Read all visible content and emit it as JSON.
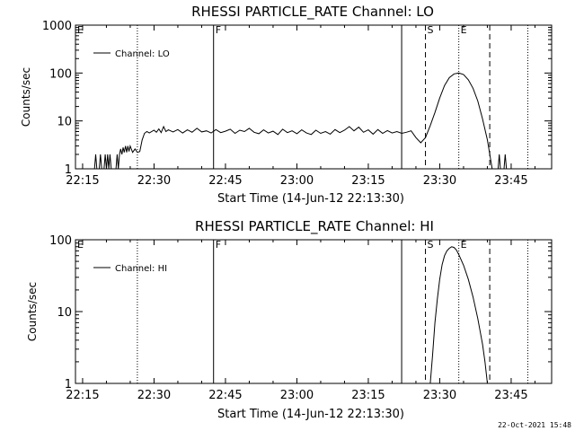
{
  "footer": {
    "timestamp": "22-Oct-2021 15:48"
  },
  "chart_data": [
    {
      "type": "line",
      "title": "RHESSI PARTICLE_RATE Channel: LO",
      "xlabel": "Start Time (14-Jun-12 22:13:30)",
      "ylabel": "Counts/sec",
      "yscale": "log",
      "ylim": [
        1,
        1000
      ],
      "ytick_values": [
        1,
        10,
        100,
        1000
      ],
      "yticks": [
        "1",
        "10",
        "100",
        "1000"
      ],
      "xlim": [
        "22:13:30",
        "23:53:30"
      ],
      "xtick_values": [
        "22:15",
        "22:30",
        "22:45",
        "23:00",
        "23:15",
        "23:30",
        "23:45"
      ],
      "xticks": [
        "22:15",
        "22:30",
        "22:45",
        "23:00",
        "23:15",
        "23:30",
        "23:45"
      ],
      "legend": {
        "label": "Channel: LO",
        "placement": "top-left"
      },
      "markers": [
        {
          "time": "22:13:30",
          "label": "E",
          "style": "solid"
        },
        {
          "time": "22:26:30",
          "label": "",
          "style": "dotted"
        },
        {
          "time": "22:42:30",
          "label": "F",
          "style": "solid"
        },
        {
          "time": "23:22:00",
          "label": "",
          "style": "solid"
        },
        {
          "time": "23:27:00",
          "label": "S",
          "style": "dashed"
        },
        {
          "time": "23:34:00",
          "label": "E",
          "style": "dotted"
        },
        {
          "time": "23:40:30",
          "label": "",
          "style": "dashed"
        },
        {
          "time": "23:48:30",
          "label": "",
          "style": "dotted"
        }
      ],
      "series": [
        {
          "name": "Channel: LO",
          "points": [
            [
              "22:17:30",
              1
            ],
            [
              "22:17:45",
              2
            ],
            [
              "22:18:00",
              1
            ],
            [
              "22:18:30",
              1
            ],
            [
              "22:18:45",
              2
            ],
            [
              "22:19:00",
              1
            ],
            [
              "22:19:30",
              1
            ],
            [
              "22:19:45",
              2
            ],
            [
              "22:20:00",
              1
            ],
            [
              "22:20:15",
              2
            ],
            [
              "22:20:30",
              1
            ],
            [
              "22:20:45",
              2
            ],
            [
              "22:21:00",
              1
            ],
            [
              "22:22:00",
              1
            ],
            [
              "22:22:15",
              2
            ],
            [
              "22:22:30",
              1
            ],
            [
              "22:22:45",
              2
            ],
            [
              "22:23:00",
              2.6
            ],
            [
              "22:23:15",
              2
            ],
            [
              "22:23:30",
              2.8
            ],
            [
              "22:23:45",
              2.2
            ],
            [
              "22:24:00",
              3
            ],
            [
              "22:24:15",
              2.2
            ],
            [
              "22:24:30",
              3
            ],
            [
              "22:24:45",
              2.3
            ],
            [
              "22:25:00",
              3
            ],
            [
              "22:25:30",
              2.2
            ],
            [
              "22:26:00",
              2.6
            ],
            [
              "22:26:30",
              2.2
            ],
            [
              "22:27:00",
              2.3
            ],
            [
              "22:27:30",
              4
            ],
            [
              "22:28:00",
              5.5
            ],
            [
              "22:28:30",
              6
            ],
            [
              "22:29:00",
              5.6
            ],
            [
              "22:30:00",
              6.4
            ],
            [
              "22:30:30",
              5.8
            ],
            [
              "22:31:00",
              6.8
            ],
            [
              "22:31:30",
              5.7
            ],
            [
              "22:32:00",
              7.6
            ],
            [
              "22:32:30",
              6
            ],
            [
              "22:33:00",
              6.5
            ],
            [
              "22:34:00",
              5.9
            ],
            [
              "22:35:00",
              6.6
            ],
            [
              "22:36:00",
              5.6
            ],
            [
              "22:37:00",
              6.5
            ],
            [
              "22:38:00",
              5.8
            ],
            [
              "22:39:00",
              7
            ],
            [
              "22:40:00",
              5.9
            ],
            [
              "22:41:00",
              6.2
            ],
            [
              "22:42:00",
              5.6
            ],
            [
              "22:43:00",
              6.6
            ],
            [
              "22:44:00",
              5.7
            ],
            [
              "22:45:00",
              6.1
            ],
            [
              "22:46:00",
              6.7
            ],
            [
              "22:47:00",
              5.5
            ],
            [
              "22:48:00",
              6.4
            ],
            [
              "22:49:00",
              6
            ],
            [
              "22:50:00",
              7
            ],
            [
              "22:51:00",
              5.8
            ],
            [
              "22:52:00",
              5.4
            ],
            [
              "22:53:00",
              6.5
            ],
            [
              "22:54:00",
              5.6
            ],
            [
              "22:55:00",
              6.1
            ],
            [
              "22:56:00",
              5.2
            ],
            [
              "22:57:00",
              6.7
            ],
            [
              "22:58:00",
              5.7
            ],
            [
              "22:59:00",
              6.2
            ],
            [
              "23:00:00",
              5.4
            ],
            [
              "23:01:00",
              6.5
            ],
            [
              "23:02:00",
              5.6
            ],
            [
              "23:03:00",
              5.2
            ],
            [
              "23:04:00",
              6.4
            ],
            [
              "23:05:00",
              5.5
            ],
            [
              "23:06:00",
              6
            ],
            [
              "23:07:00",
              5.3
            ],
            [
              "23:08:00",
              6.6
            ],
            [
              "23:09:00",
              5.7
            ],
            [
              "23:10:00",
              6.4
            ],
            [
              "23:11:00",
              7.6
            ],
            [
              "23:12:00",
              6.2
            ],
            [
              "23:13:00",
              7.4
            ],
            [
              "23:14:00",
              5.8
            ],
            [
              "23:15:00",
              6.5
            ],
            [
              "23:16:00",
              5.3
            ],
            [
              "23:17:00",
              6.6
            ],
            [
              "23:18:00",
              5.5
            ],
            [
              "23:19:00",
              6.3
            ],
            [
              "23:20:00",
              5.6
            ],
            [
              "23:21:00",
              6
            ],
            [
              "23:22:00",
              5.5
            ],
            [
              "23:23:00",
              5.8
            ],
            [
              "23:24:00",
              6.2
            ],
            [
              "23:25:00",
              4.5
            ],
            [
              "23:26:00",
              3.5
            ],
            [
              "23:27:00",
              4.5
            ],
            [
              "23:28:00",
              8
            ],
            [
              "23:29:00",
              15
            ],
            [
              "23:30:00",
              30
            ],
            [
              "23:31:00",
              55
            ],
            [
              "23:32:00",
              80
            ],
            [
              "23:33:00",
              96
            ],
            [
              "23:34:00",
              100
            ],
            [
              "23:35:00",
              93
            ],
            [
              "23:36:00",
              72
            ],
            [
              "23:37:00",
              48
            ],
            [
              "23:38:00",
              26
            ],
            [
              "23:39:00",
              11
            ],
            [
              "23:40:00",
              4
            ],
            [
              "23:40:40",
              1.6
            ],
            [
              "23:41:00",
              1
            ],
            [
              "23:42:15",
              1
            ],
            [
              "23:42:30",
              2
            ],
            [
              "23:42:45",
              1
            ],
            [
              "23:43:30",
              1
            ],
            [
              "23:43:45",
              2
            ],
            [
              "23:44:00",
              1
            ]
          ]
        }
      ]
    },
    {
      "type": "line",
      "title": "RHESSI PARTICLE_RATE Channel: HI",
      "xlabel": "Start Time (14-Jun-12 22:13:30)",
      "ylabel": "Counts/sec",
      "yscale": "log",
      "ylim": [
        1,
        100
      ],
      "ytick_values": [
        1,
        10,
        100
      ],
      "yticks": [
        "1",
        "10",
        "100"
      ],
      "xlim": [
        "22:13:30",
        "23:53:30"
      ],
      "xtick_values": [
        "22:15",
        "22:30",
        "22:45",
        "23:00",
        "23:15",
        "23:30",
        "23:45"
      ],
      "xticks": [
        "22:15",
        "22:30",
        "22:45",
        "23:00",
        "23:15",
        "23:30",
        "23:45"
      ],
      "legend": {
        "label": "Channel: HI",
        "placement": "top-left"
      },
      "markers": [
        {
          "time": "22:13:30",
          "label": "E",
          "style": "solid"
        },
        {
          "time": "22:26:30",
          "label": "",
          "style": "dotted"
        },
        {
          "time": "22:42:30",
          "label": "F",
          "style": "solid"
        },
        {
          "time": "23:22:00",
          "label": "",
          "style": "solid"
        },
        {
          "time": "23:27:00",
          "label": "S",
          "style": "dashed"
        },
        {
          "time": "23:34:00",
          "label": "E",
          "style": "dotted"
        },
        {
          "time": "23:40:30",
          "label": "",
          "style": "dashed"
        },
        {
          "time": "23:48:30",
          "label": "",
          "style": "dotted"
        }
      ],
      "series": [
        {
          "name": "Channel: HI",
          "points": [
            [
              "23:28:00",
              1
            ],
            [
              "23:28:30",
              2.5
            ],
            [
              "23:29:00",
              7
            ],
            [
              "23:29:30",
              15
            ],
            [
              "23:30:00",
              28
            ],
            [
              "23:30:30",
              45
            ],
            [
              "23:31:00",
              60
            ],
            [
              "23:31:30",
              70
            ],
            [
              "23:32:00",
              76
            ],
            [
              "23:32:30",
              80
            ],
            [
              "23:33:00",
              78
            ],
            [
              "23:33:30",
              72
            ],
            [
              "23:34:00",
              62
            ],
            [
              "23:35:00",
              44
            ],
            [
              "23:36:00",
              28
            ],
            [
              "23:37:00",
              16
            ],
            [
              "23:38:00",
              8
            ],
            [
              "23:39:00",
              3.5
            ],
            [
              "23:39:30",
              2
            ],
            [
              "23:40:00",
              1
            ]
          ]
        }
      ]
    }
  ]
}
